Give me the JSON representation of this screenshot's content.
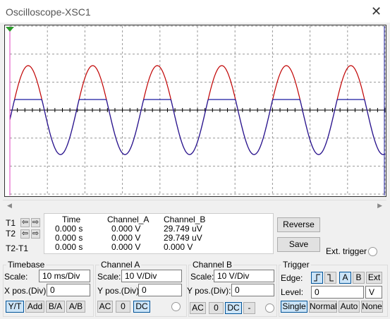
{
  "window": {
    "title": "Oscilloscope-XSC1"
  },
  "readout": {
    "row_labels": [
      "T1",
      "T2",
      "T2-T1"
    ],
    "headers": [
      "Time",
      "Channel_A",
      "Channel_B"
    ],
    "rows": [
      [
        "0.000 s",
        "0.000 V",
        "29.749 uV"
      ],
      [
        "0.000 s",
        "0.000 V",
        "29.749 uV"
      ],
      [
        "0.000 s",
        "0.000 V",
        "0.000 V"
      ]
    ]
  },
  "buttons": {
    "reverse": "Reverse",
    "save": "Save",
    "ext_trigger": "Ext. trigger"
  },
  "timebase": {
    "title": "Timebase",
    "scale_label": "Scale:",
    "scale": "10 ms/Div",
    "xpos_label": "X pos.(Div):",
    "xpos": "0",
    "modes": [
      "Y/T",
      "Add",
      "B/A",
      "A/B"
    ]
  },
  "channel_a": {
    "title": "Channel A",
    "scale_label": "Scale:",
    "scale": "10  V/Div",
    "ypos_label": "Y pos.(Div):",
    "ypos": "0",
    "coupling": [
      "AC",
      "0",
      "DC"
    ]
  },
  "channel_b": {
    "title": "Channel B",
    "scale_label": "Scale:",
    "scale": "10  V/Div",
    "ypos_label": "Y pos.(Div):",
    "ypos": "0",
    "coupling": [
      "AC",
      "0",
      "DC",
      "-"
    ]
  },
  "trigger": {
    "title": "Trigger",
    "edge_label": "Edge:",
    "sources": [
      "A",
      "B",
      "Ext"
    ],
    "level_label": "Level:",
    "level": "0",
    "level_unit": "V",
    "modes": [
      "Single",
      "Normal",
      "Auto",
      "None"
    ]
  }
}
